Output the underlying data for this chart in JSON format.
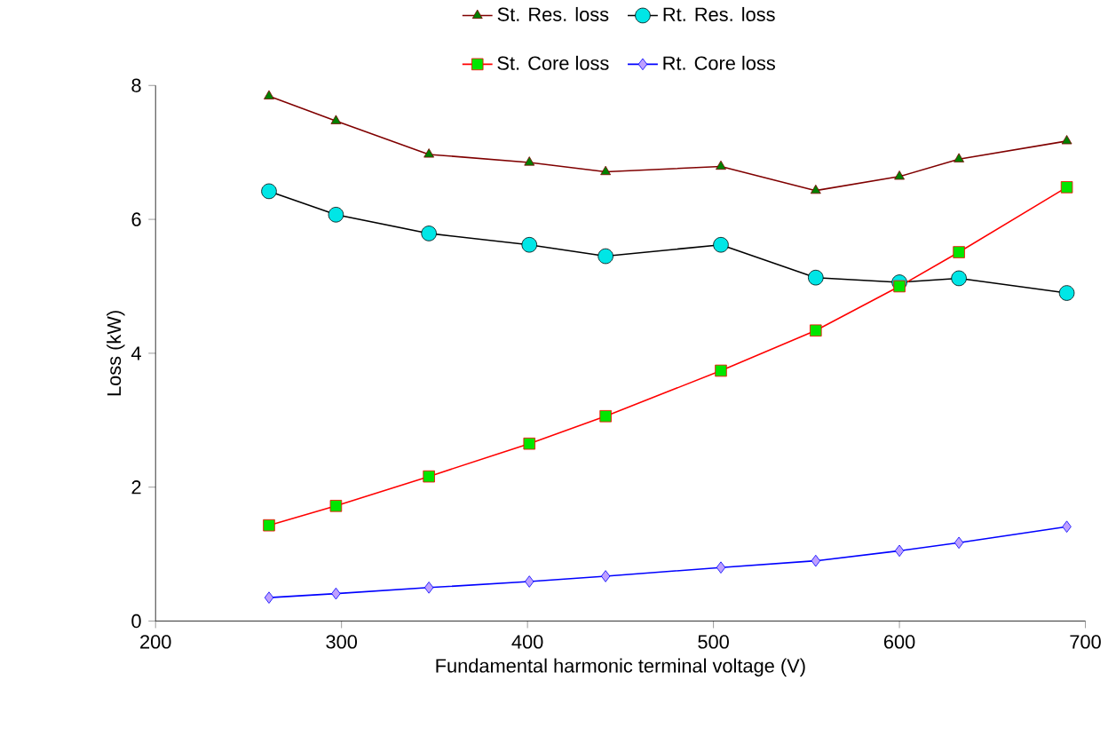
{
  "chart_data": {
    "type": "line",
    "xlabel": "Fundamental harmonic terminal voltage (V)",
    "ylabel": "Loss (kW)",
    "x": [
      261,
      297,
      347,
      401,
      442,
      504,
      555,
      600,
      632,
      690
    ],
    "series": [
      {
        "name": "St. Res. loss",
        "color": "#800000",
        "marker": "triangle",
        "values": [
          7.84,
          7.47,
          6.97,
          6.85,
          6.71,
          6.79,
          6.43,
          6.64,
          6.9,
          7.17
        ]
      },
      {
        "name": "Rt. Res. loss",
        "color": "#000000",
        "marker": "circle",
        "values": [
          6.42,
          6.07,
          5.79,
          5.62,
          5.45,
          5.62,
          5.13,
          5.06,
          5.12,
          4.9
        ]
      },
      {
        "name": "St. Core loss",
        "color": "#ff0000",
        "marker": "square",
        "values": [
          1.43,
          1.72,
          2.16,
          2.65,
          3.06,
          3.74,
          4.34,
          5.0,
          5.51,
          6.48
        ]
      },
      {
        "name": "Rt. Core loss",
        "color": "#0000ff",
        "marker": "diamond",
        "values": [
          0.35,
          0.41,
          0.5,
          0.59,
          0.67,
          0.8,
          0.9,
          1.05,
          1.17,
          1.41
        ]
      }
    ],
    "xlim": [
      200,
      700
    ],
    "xticks": [
      200,
      300,
      400,
      500,
      600,
      700
    ],
    "ylim": [
      0,
      8
    ],
    "yticks": [
      0,
      2,
      4,
      6,
      8
    ],
    "grid": false,
    "legend": "top",
    "line_style": "solid"
  }
}
